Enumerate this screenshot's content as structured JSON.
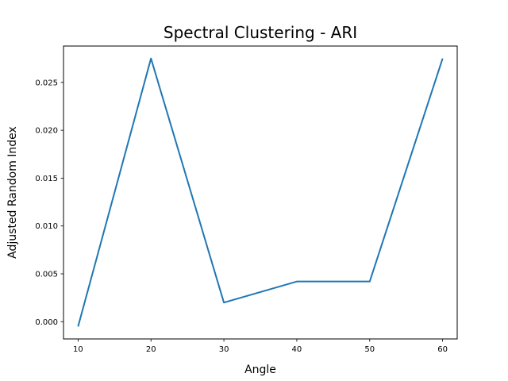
{
  "chart_data": {
    "type": "line",
    "title": "Spectral Clustering - ARI",
    "xlabel": "Angle",
    "ylabel": "Adjusted Random Index",
    "x": [
      10,
      20,
      30,
      40,
      50,
      60
    ],
    "series": [
      {
        "values": [
          -0.0005,
          0.0275,
          0.002,
          0.0042,
          0.0042,
          0.0275
        ],
        "color": "#1f77b4"
      }
    ],
    "xlim": [
      8,
      62
    ],
    "ylim": [
      -0.0018,
      0.0288
    ],
    "xticks": [
      "10",
      "20",
      "30",
      "40",
      "50",
      "60"
    ],
    "yticks": [
      "0.000",
      "0.005",
      "0.010",
      "0.015",
      "0.020",
      "0.025"
    ],
    "grid": false,
    "legend": "none"
  }
}
